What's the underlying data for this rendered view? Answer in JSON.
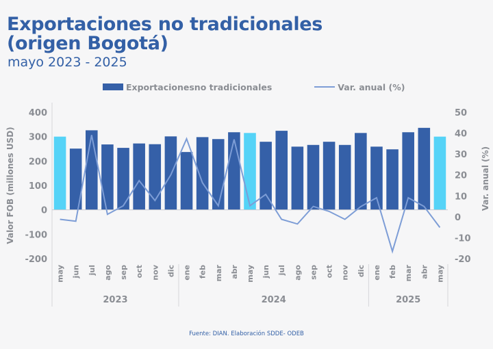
{
  "header": {
    "title_line1": "Exportaciones no tradicionales",
    "title_line2": "(origen Bogotá)",
    "subtitle": "mayo 2023 - 2025"
  },
  "footer": {
    "source": "Fuente: DIAN. Elaboración SDDE- ODEB"
  },
  "colors": {
    "title": "#3360a6",
    "bar": "#3560a8",
    "bar_highlight": "#55d3f7",
    "line": "#7d9dd6",
    "axis_text": "#8a8d93",
    "background": "#f6f6f7"
  },
  "chart_data": {
    "type": "bar",
    "title": "Exportaciones no tradicionales (origen Bogotá)",
    "subtitle": "mayo 2023 - 2025",
    "categories": [
      "may",
      "jun",
      "jul",
      "ago",
      "sep",
      "oct",
      "nov",
      "dic",
      "ene",
      "feb",
      "mar",
      "abr",
      "may",
      "jun",
      "jul",
      "ago",
      "sep",
      "oct",
      "nov",
      "dic",
      "ene",
      "feb",
      "mar",
      "abr",
      "may"
    ],
    "year_groups": [
      {
        "label": "2023",
        "count": 8
      },
      {
        "label": "2024",
        "count": 12
      },
      {
        "label": "2025",
        "count": 5
      }
    ],
    "highlighted_categories_index": [
      0,
      12,
      24
    ],
    "series": [
      {
        "name": "Exportacionesno tradicionales",
        "type": "bar",
        "axis": "left",
        "values": [
          300,
          251,
          326,
          268,
          254,
          272,
          269,
          301,
          237,
          298,
          290,
          318,
          315,
          279,
          324,
          259,
          266,
          279,
          266,
          315,
          259,
          248,
          318,
          336,
          300
        ]
      },
      {
        "name": "Var. anual (%)",
        "type": "line",
        "axis": "right",
        "values": [
          -1.2,
          -2.1,
          39.1,
          1.2,
          5.3,
          17.3,
          7.8,
          20.0,
          37.3,
          16.3,
          5.3,
          37.0,
          5.3,
          10.7,
          -1.2,
          -3.4,
          5.0,
          2.6,
          -1.2,
          4.9,
          9.1,
          -16.5,
          9.1,
          5.0,
          -5.1
        ]
      }
    ],
    "ylabel": "Valor FOB (millones USD)",
    "ylim": [
      -200,
      400
    ],
    "yticks": [
      -200,
      -100,
      0,
      100,
      200,
      300,
      400
    ],
    "y2label": "Var. anual (%)",
    "y2lim": [
      -20,
      50
    ],
    "y2ticks": [
      -20,
      -10,
      0,
      10,
      20,
      30,
      40,
      50
    ],
    "grid": false,
    "legend": "top-center"
  }
}
